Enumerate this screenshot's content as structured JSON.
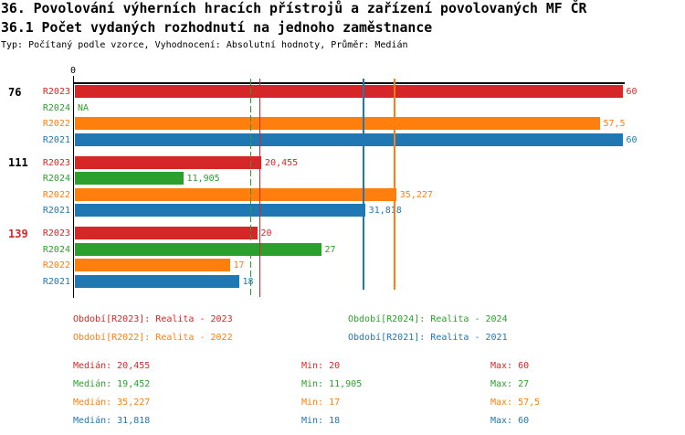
{
  "header": {
    "title_line1": "36. Povolování výherních hracích přístrojů a zařízení povolovaných MF ČR",
    "title_line2": "36.1 Počet vydaných rozhodnutí na jednoho zaměstnance",
    "meta": "Typ: Počítaný podle vzorce, Vyhodnocení: Absolutní hodnoty, Průměr: Medián"
  },
  "colors": {
    "red": "#d62728",
    "green": "#2ca02c",
    "orange": "#ff7f0e",
    "blue": "#1f77b4",
    "axis": "#000000"
  },
  "chart_data": {
    "type": "bar",
    "orientation": "horizontal",
    "xlim": [
      0,
      60
    ],
    "x_tick_labels": [
      "0"
    ],
    "grid": false,
    "series_order": [
      "R2023",
      "R2024",
      "R2022",
      "R2021"
    ],
    "series_colors": {
      "R2023": "#d62728",
      "R2024": "#2ca02c",
      "R2022": "#ff7f0e",
      "R2021": "#1f77b4"
    },
    "groups": [
      {
        "label": "76",
        "label_color": "#000000",
        "values": {
          "R2023": 60,
          "R2024": null,
          "R2022": 57.5,
          "R2021": 60
        },
        "value_labels": {
          "R2023": "60",
          "R2024": "NA",
          "R2022": "57,5",
          "R2021": "60"
        }
      },
      {
        "label": "111",
        "label_color": "#000000",
        "values": {
          "R2023": 20.455,
          "R2024": 11.905,
          "R2022": 35.227,
          "R2021": 31.818
        },
        "value_labels": {
          "R2023": "20,455",
          "R2024": "11,905",
          "R2022": "35,227",
          "R2021": "31,818"
        }
      },
      {
        "label": "139",
        "label_color": "#d62728",
        "values": {
          "R2023": 20,
          "R2024": 27,
          "R2022": 17,
          "R2021": 18
        },
        "value_labels": {
          "R2023": "20",
          "R2024": "27",
          "R2022": "17",
          "R2021": "18"
        }
      }
    ],
    "median_lines": [
      {
        "series": "R2024",
        "value": 19.452,
        "color": "#2ca02c",
        "style": "dashed"
      },
      {
        "series": "R2023",
        "value": 20.455,
        "color": "#d62728",
        "style": "solid"
      },
      {
        "series": "R2021",
        "value": 31.818,
        "color": "#1f77b4",
        "style": "solid"
      },
      {
        "series": "R2022",
        "value": 35.227,
        "color": "#ff7f0e",
        "style": "solid"
      }
    ]
  },
  "legend": {
    "items": [
      {
        "text": "Období[R2023]: Realita - 2023",
        "color": "#d62728",
        "row": 0,
        "col": 0
      },
      {
        "text": "Období[R2024]: Realita - 2024",
        "color": "#2ca02c",
        "row": 0,
        "col": 1
      },
      {
        "text": "Období[R2022]: Realita - 2022",
        "color": "#ff7f0e",
        "row": 1,
        "col": 0
      },
      {
        "text": "Období[R2021]: Realita - 2021",
        "color": "#1f77b4",
        "row": 1,
        "col": 1
      }
    ]
  },
  "stats": {
    "rows": [
      {
        "color": "#d62728",
        "median": "Medián: 20,455",
        "min": "Min: 20",
        "max": "Max: 60"
      },
      {
        "color": "#2ca02c",
        "median": "Medián: 19,452",
        "min": "Min: 11,905",
        "max": "Max: 27"
      },
      {
        "color": "#ff7f0e",
        "median": "Medián: 35,227",
        "min": "Min: 17",
        "max": "Max: 57,5"
      },
      {
        "color": "#1f77b4",
        "median": "Medián: 31,818",
        "min": "Min: 18",
        "max": "Max: 60"
      }
    ]
  }
}
